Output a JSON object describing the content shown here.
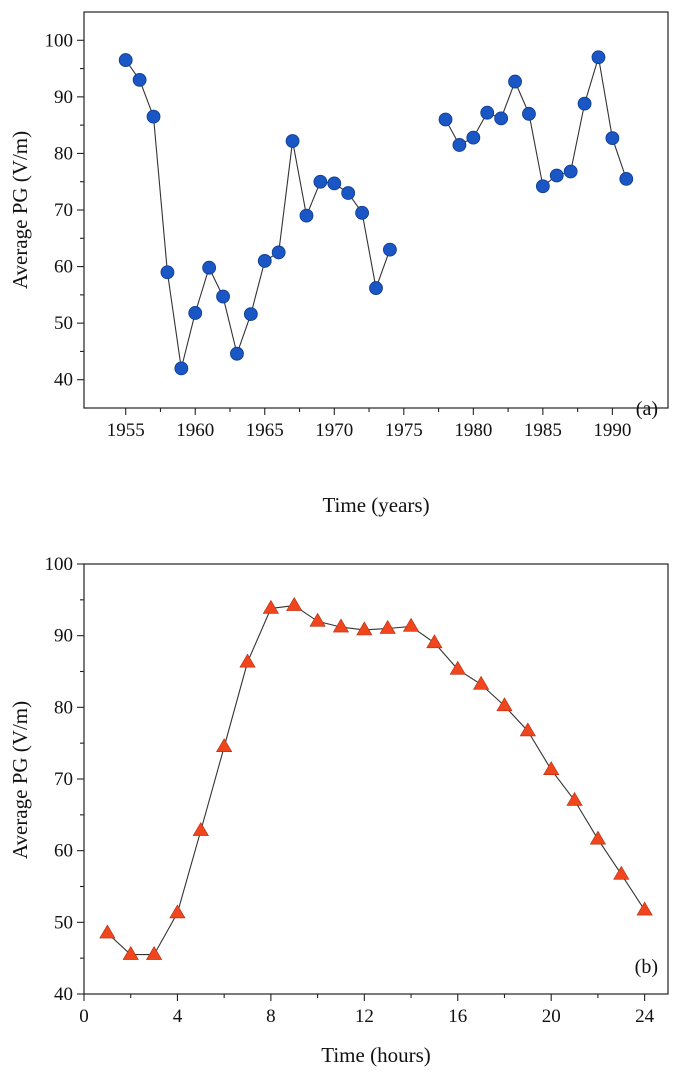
{
  "chart_data": [
    {
      "type": "scatter",
      "panel_label": "(a)",
      "xlabel": "Time (years)",
      "ylabel": "Average PG (V/m)",
      "xlim": [
        1952,
        1994
      ],
      "ylim": [
        35,
        105
      ],
      "xticks": [
        1955,
        1960,
        1965,
        1970,
        1975,
        1980,
        1985,
        1990
      ],
      "yticks": [
        40,
        50,
        60,
        70,
        80,
        90,
        100
      ],
      "marker": "circle",
      "color": "#1a56c4",
      "grid": false,
      "series": [
        {
          "x": [
            1955,
            1956,
            1957,
            1958,
            1959,
            1960,
            1961,
            1962,
            1963,
            1964,
            1965,
            1966,
            1967,
            1968,
            1969,
            1970,
            1971,
            1972,
            1973,
            1974
          ],
          "y": [
            96.5,
            93,
            86.5,
            59,
            42,
            51.8,
            59.8,
            54.7,
            44.6,
            51.6,
            61,
            62.5,
            82.2,
            69,
            75,
            74.7,
            73,
            69.5,
            56.2,
            63
          ]
        },
        {
          "x": [
            1978,
            1979,
            1980,
            1981,
            1982,
            1983,
            1984,
            1985,
            1986,
            1987,
            1988,
            1989,
            1990,
            1991
          ],
          "y": [
            86,
            81.5,
            82.8,
            87.2,
            86.2,
            92.7,
            87,
            74.2,
            76.1,
            76.8,
            88.8,
            97,
            82.7,
            75.5
          ]
        }
      ]
    },
    {
      "type": "scatter",
      "panel_label": "(b)",
      "xlabel": "Time (hours)",
      "ylabel": "Average PG (V/m)",
      "xlim": [
        0,
        25
      ],
      "ylim": [
        40,
        100
      ],
      "xticks": [
        0,
        4,
        8,
        12,
        16,
        20,
        24
      ],
      "yticks": [
        40,
        50,
        60,
        70,
        80,
        90,
        100
      ],
      "marker": "triangle",
      "color": "#f0461e",
      "grid": false,
      "series": [
        {
          "x": [
            1,
            2,
            3,
            4,
            5,
            6,
            7,
            8,
            9,
            10,
            11,
            12,
            13,
            14,
            15,
            16,
            17,
            18,
            19,
            20,
            21,
            22,
            23,
            24
          ],
          "y": [
            48.5,
            45.5,
            45.5,
            51.3,
            62.8,
            74.5,
            86.3,
            93.8,
            94.2,
            92,
            91.2,
            90.8,
            91,
            91.3,
            89,
            85.3,
            83.2,
            80.2,
            76.7,
            71.3,
            67,
            61.6,
            56.7,
            51.7
          ]
        }
      ]
    }
  ]
}
